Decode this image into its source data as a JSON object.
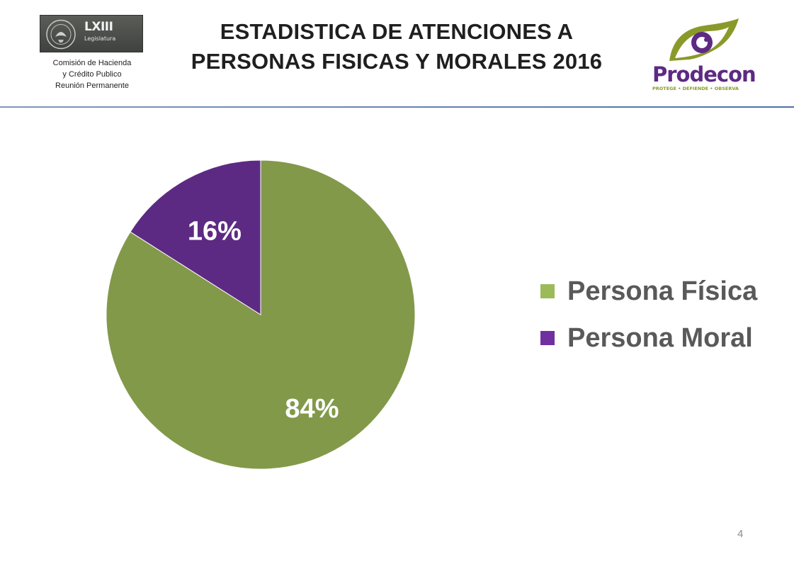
{
  "header": {
    "legislature_logo": {
      "number": "LXIII",
      "word": "Legislatura"
    },
    "committee": [
      "Comisión de Hacienda",
      "y Crédito Publico",
      "Reunión Permanente"
    ],
    "title_lines": [
      "ESTADISTICA DE ATENCIONES A",
      "PERSONAS FISICAS Y MORALES 2016"
    ],
    "prodecon_logo": {
      "name": "Prodecon",
      "tagline": "PROTEGE • DEFIENDE • OBSERVA"
    }
  },
  "chart_data": {
    "type": "pie",
    "categories": [
      "Persona Física",
      "Persona Moral"
    ],
    "values": [
      84,
      16
    ],
    "labels": [
      "84%",
      "16%"
    ],
    "colors": [
      "#82994a",
      "#5d2a83"
    ],
    "legend_colors": [
      "#9bbb59",
      "#7030a0"
    ],
    "legend_position": "right"
  },
  "page_number": "4"
}
